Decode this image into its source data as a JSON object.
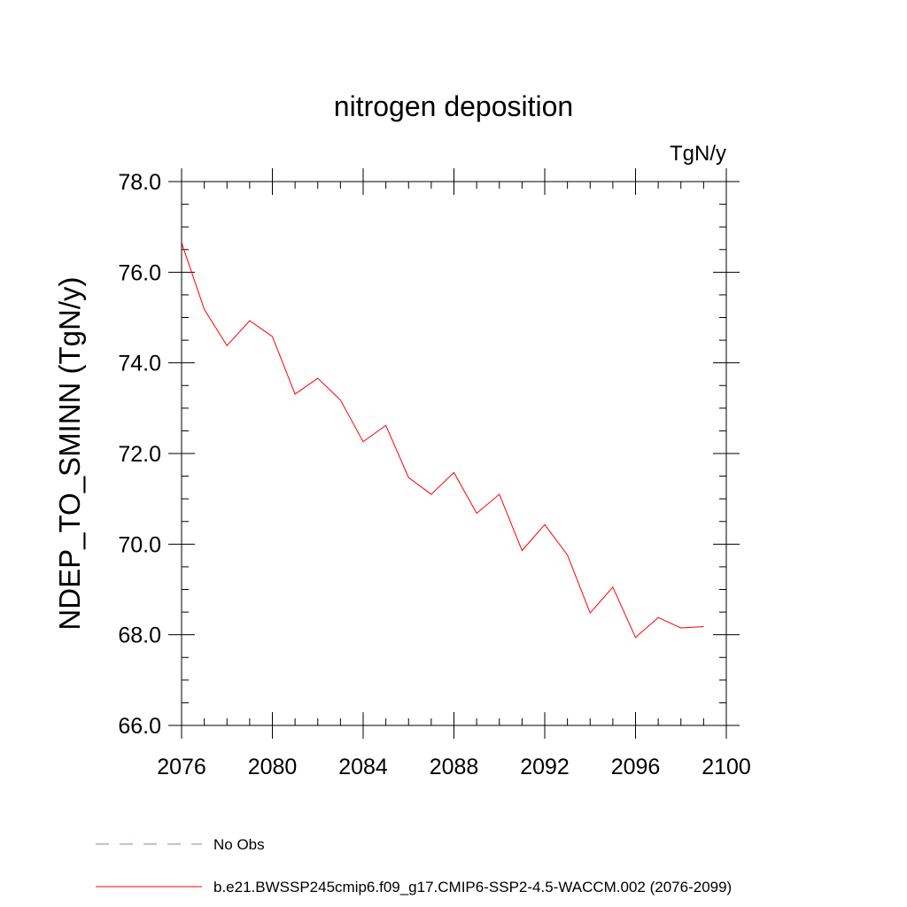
{
  "chart_data": {
    "type": "line",
    "title": "nitrogen deposition",
    "units": "TgN/y",
    "ylabel": "NDEP_TO_SMINN  (TgN/y)",
    "xlabel": "",
    "xlim": [
      2076,
      2100
    ],
    "ylim": [
      66.0,
      78.0
    ],
    "xticks": [
      2076,
      2080,
      2084,
      2088,
      2092,
      2096,
      2100
    ],
    "xtick_labels": [
      "2076",
      "2080",
      "2084",
      "2088",
      "2092",
      "2096",
      "2100"
    ],
    "yticks": [
      66.0,
      68.0,
      70.0,
      72.0,
      74.0,
      76.0,
      78.0
    ],
    "ytick_labels": [
      "66.0",
      "68.0",
      "70.0",
      "72.0",
      "74.0",
      "76.0",
      "78.0"
    ],
    "x_minor_step": 1,
    "y_minor_step": 0.5,
    "grid": false,
    "legend_position": "bottom",
    "series": [
      {
        "name": "b.e21.BWSSP245cmip6.f09_g17.CMIP6-SSP2-4.5-WACCM.002 (2076-2099)",
        "color": "#ff0000",
        "style": "solid",
        "x": [
          2076,
          2077,
          2078,
          2079,
          2080,
          2081,
          2082,
          2083,
          2084,
          2085,
          2086,
          2087,
          2088,
          2089,
          2090,
          2091,
          2092,
          2093,
          2094,
          2095,
          2096,
          2097,
          2098,
          2099
        ],
        "values": [
          76.65,
          75.18,
          74.38,
          74.93,
          74.58,
          73.31,
          73.66,
          73.18,
          72.26,
          72.62,
          71.47,
          71.1,
          71.58,
          70.68,
          71.1,
          69.86,
          70.43,
          69.76,
          68.48,
          69.05,
          67.94,
          68.38,
          68.15,
          68.18
        ]
      }
    ],
    "legend": [
      {
        "label": "No Obs",
        "color": "#8080c0",
        "style": "dashed"
      },
      {
        "label": "b.e21.BWSSP245cmip6.f09_g17.CMIP6-SSP2-4.5-WACCM.002 (2076-2099)",
        "color": "#ff0000",
        "style": "solid"
      }
    ]
  }
}
